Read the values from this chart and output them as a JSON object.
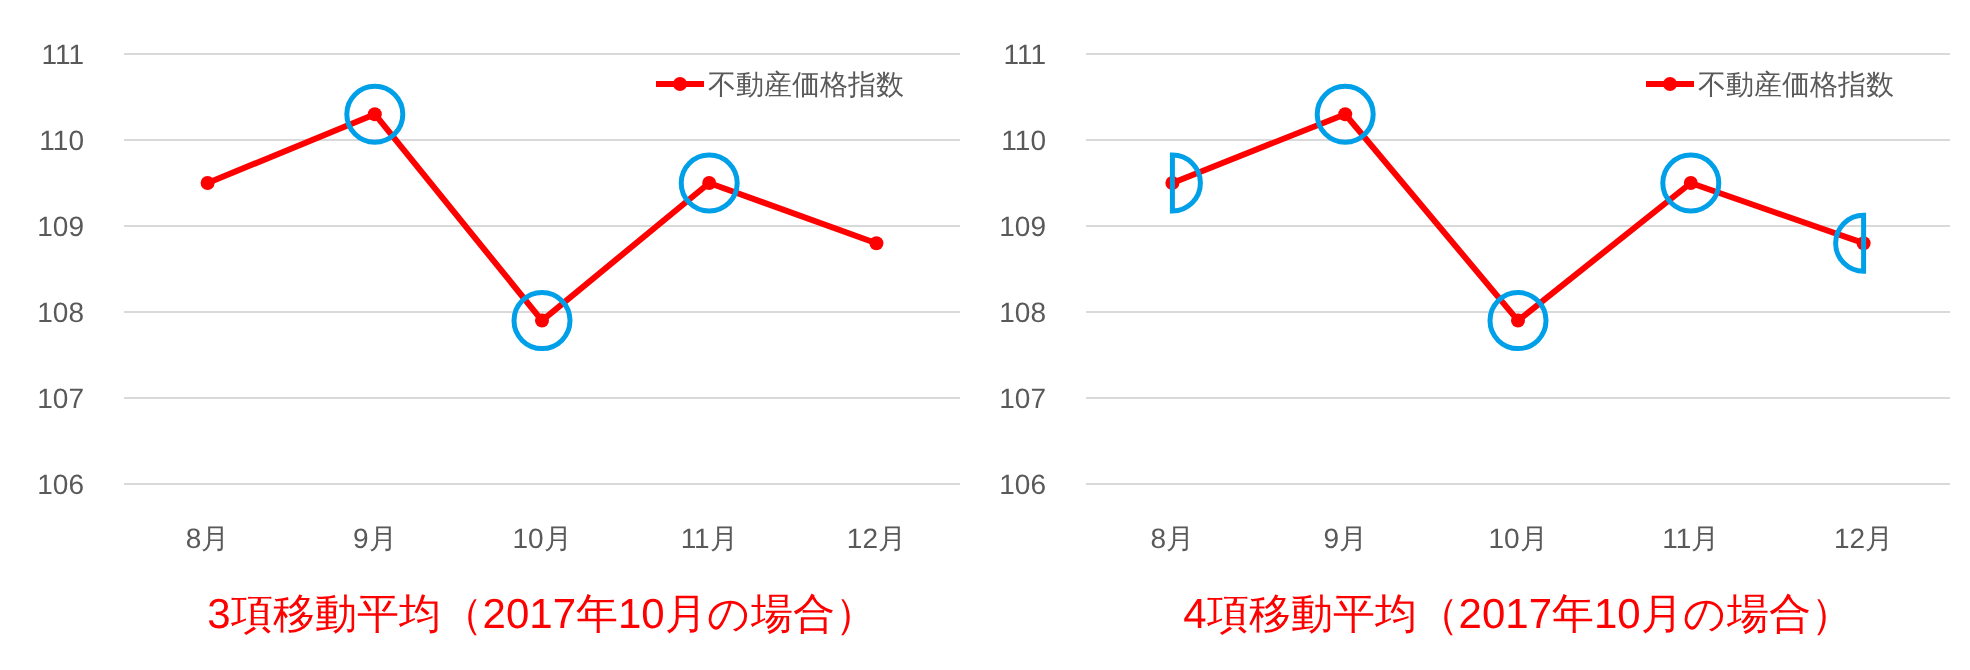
{
  "chart_data": [
    {
      "type": "line",
      "title": "3項移動平均（2017年10月の場合）",
      "categories": [
        "8月",
        "9月",
        "10月",
        "11月",
        "12月"
      ],
      "series": [
        {
          "name": "不動産価格指数",
          "color": "#ff0000",
          "values": [
            109.5,
            110.3,
            107.9,
            109.5,
            108.8
          ]
        }
      ],
      "ylim": [
        106,
        111
      ],
      "yticks": [
        106,
        107,
        108,
        109,
        110,
        111
      ],
      "grid": "y",
      "legend": "top right",
      "marker": "circle",
      "line_style": "solid"
    },
    {
      "type": "line",
      "title": "4項移動平均（2017年10月の場合）",
      "categories": [
        "8月",
        "9月",
        "10月",
        "11月",
        "12月"
      ],
      "series": [
        {
          "name": "不動産価格指数",
          "color": "#ff0000",
          "values": [
            109.5,
            110.3,
            107.9,
            109.5,
            108.8
          ]
        }
      ],
      "ylim": [
        106,
        111
      ],
      "yticks": [
        106,
        107,
        108,
        109,
        110,
        111
      ],
      "grid": "y",
      "legend": "top right",
      "marker": "circle",
      "line_style": "solid"
    }
  ]
}
